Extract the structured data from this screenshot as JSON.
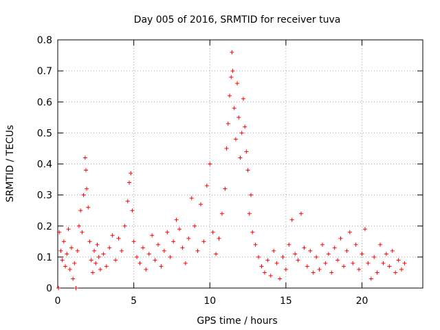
{
  "chart_data": {
    "type": "scatter",
    "title": "Day 005 of 2016, SRMTID for receiver tuva",
    "xlabel": "GPS time / hours",
    "ylabel": "SRMTID / TECUs",
    "xlim": [
      0,
      24
    ],
    "ylim": [
      0,
      0.8
    ],
    "xticks": [
      0,
      5,
      10,
      15,
      20
    ],
    "yticks": [
      0,
      0.1,
      0.2,
      0.3,
      0.4,
      0.5,
      0.6,
      0.7,
      0.8
    ],
    "xtick_labels": [
      "0",
      "5",
      "10",
      "15",
      "20"
    ],
    "ytick_labels": [
      "0",
      "0.1",
      "0.2",
      "0.3",
      "0.4",
      "0.5",
      "0.6",
      "0.7",
      "0.8"
    ],
    "grid": true,
    "marker": "+",
    "series_color": "#ff0000",
    "data_coverage": [
      0,
      22.8
    ],
    "series": [
      {
        "name": "SRMTID",
        "points": [
          [
            0.05,
            0.0
          ],
          [
            0.1,
            0.18
          ],
          [
            0.2,
            0.12
          ],
          [
            0.3,
            0.09
          ],
          [
            0.4,
            0.15
          ],
          [
            0.5,
            0.07
          ],
          [
            0.6,
            0.11
          ],
          [
            0.7,
            0.19
          ],
          [
            0.8,
            0.06
          ],
          [
            0.9,
            0.13
          ],
          [
            1.0,
            0.03
          ],
          [
            1.1,
            0.08
          ],
          [
            1.2,
            0.0
          ],
          [
            1.3,
            0.12
          ],
          [
            1.4,
            0.2
          ],
          [
            1.5,
            0.25
          ],
          [
            1.6,
            0.18
          ],
          [
            1.7,
            0.3
          ],
          [
            1.8,
            0.42
          ],
          [
            1.85,
            0.38
          ],
          [
            1.9,
            0.32
          ],
          [
            2.0,
            0.26
          ],
          [
            2.1,
            0.15
          ],
          [
            2.2,
            0.09
          ],
          [
            2.3,
            0.05
          ],
          [
            2.4,
            0.12
          ],
          [
            2.5,
            0.08
          ],
          [
            2.6,
            0.14
          ],
          [
            2.7,
            0.1
          ],
          [
            2.8,
            0.06
          ],
          [
            3.0,
            0.11
          ],
          [
            3.2,
            0.07
          ],
          [
            3.4,
            0.13
          ],
          [
            3.6,
            0.17
          ],
          [
            3.8,
            0.09
          ],
          [
            4.0,
            0.16
          ],
          [
            4.2,
            0.12
          ],
          [
            4.4,
            0.2
          ],
          [
            4.6,
            0.28
          ],
          [
            4.7,
            0.34
          ],
          [
            4.8,
            0.37
          ],
          [
            4.9,
            0.25
          ],
          [
            5.0,
            0.15
          ],
          [
            5.2,
            0.1
          ],
          [
            5.4,
            0.08
          ],
          [
            5.6,
            0.13
          ],
          [
            5.8,
            0.06
          ],
          [
            6.0,
            0.11
          ],
          [
            6.2,
            0.17
          ],
          [
            6.4,
            0.09
          ],
          [
            6.6,
            0.14
          ],
          [
            6.8,
            0.07
          ],
          [
            7.0,
            0.12
          ],
          [
            7.2,
            0.18
          ],
          [
            7.4,
            0.1
          ],
          [
            7.6,
            0.15
          ],
          [
            7.8,
            0.22
          ],
          [
            8.0,
            0.19
          ],
          [
            8.2,
            0.13
          ],
          [
            8.4,
            0.08
          ],
          [
            8.6,
            0.16
          ],
          [
            8.8,
            0.29
          ],
          [
            9.0,
            0.2
          ],
          [
            9.2,
            0.12
          ],
          [
            9.4,
            0.27
          ],
          [
            9.6,
            0.15
          ],
          [
            9.8,
            0.33
          ],
          [
            10.0,
            0.4
          ],
          [
            10.2,
            0.18
          ],
          [
            10.4,
            0.11
          ],
          [
            10.6,
            0.16
          ],
          [
            10.8,
            0.24
          ],
          [
            11.0,
            0.32
          ],
          [
            11.1,
            0.45
          ],
          [
            11.2,
            0.53
          ],
          [
            11.3,
            0.62
          ],
          [
            11.4,
            0.68
          ],
          [
            11.45,
            0.76
          ],
          [
            11.5,
            0.7
          ],
          [
            11.6,
            0.58
          ],
          [
            11.7,
            0.48
          ],
          [
            11.8,
            0.66
          ],
          [
            11.9,
            0.55
          ],
          [
            12.0,
            0.42
          ],
          [
            12.1,
            0.5
          ],
          [
            12.2,
            0.61
          ],
          [
            12.3,
            0.52
          ],
          [
            12.4,
            0.44
          ],
          [
            12.5,
            0.38
          ],
          [
            12.6,
            0.24
          ],
          [
            12.7,
            0.3
          ],
          [
            12.8,
            0.18
          ],
          [
            13.0,
            0.14
          ],
          [
            13.2,
            0.1
          ],
          [
            13.4,
            0.07
          ],
          [
            13.6,
            0.05
          ],
          [
            13.8,
            0.09
          ],
          [
            14.0,
            0.04
          ],
          [
            14.2,
            0.12
          ],
          [
            14.4,
            0.08
          ],
          [
            14.6,
            0.03
          ],
          [
            14.8,
            0.1
          ],
          [
            15.0,
            0.06
          ],
          [
            15.2,
            0.14
          ],
          [
            15.4,
            0.22
          ],
          [
            15.6,
            0.11
          ],
          [
            15.8,
            0.09
          ],
          [
            16.0,
            0.24
          ],
          [
            16.2,
            0.13
          ],
          [
            16.4,
            0.07
          ],
          [
            16.6,
            0.12
          ],
          [
            16.8,
            0.05
          ],
          [
            17.0,
            0.1
          ],
          [
            17.2,
            0.06
          ],
          [
            17.4,
            0.14
          ],
          [
            17.6,
            0.08
          ],
          [
            17.8,
            0.11
          ],
          [
            18.0,
            0.05
          ],
          [
            18.2,
            0.13
          ],
          [
            18.4,
            0.09
          ],
          [
            18.6,
            0.16
          ],
          [
            18.8,
            0.07
          ],
          [
            19.0,
            0.12
          ],
          [
            19.2,
            0.18
          ],
          [
            19.4,
            0.08
          ],
          [
            19.6,
            0.14
          ],
          [
            19.8,
            0.06
          ],
          [
            20.0,
            0.11
          ],
          [
            20.2,
            0.19
          ],
          [
            20.4,
            0.08
          ],
          [
            20.6,
            0.03
          ],
          [
            20.8,
            0.1
          ],
          [
            21.0,
            0.05
          ],
          [
            21.2,
            0.14
          ],
          [
            21.4,
            0.08
          ],
          [
            21.6,
            0.11
          ],
          [
            21.8,
            0.07
          ],
          [
            22.0,
            0.12
          ],
          [
            22.2,
            0.05
          ],
          [
            22.4,
            0.09
          ],
          [
            22.6,
            0.06
          ],
          [
            22.8,
            0.08
          ]
        ]
      }
    ]
  }
}
